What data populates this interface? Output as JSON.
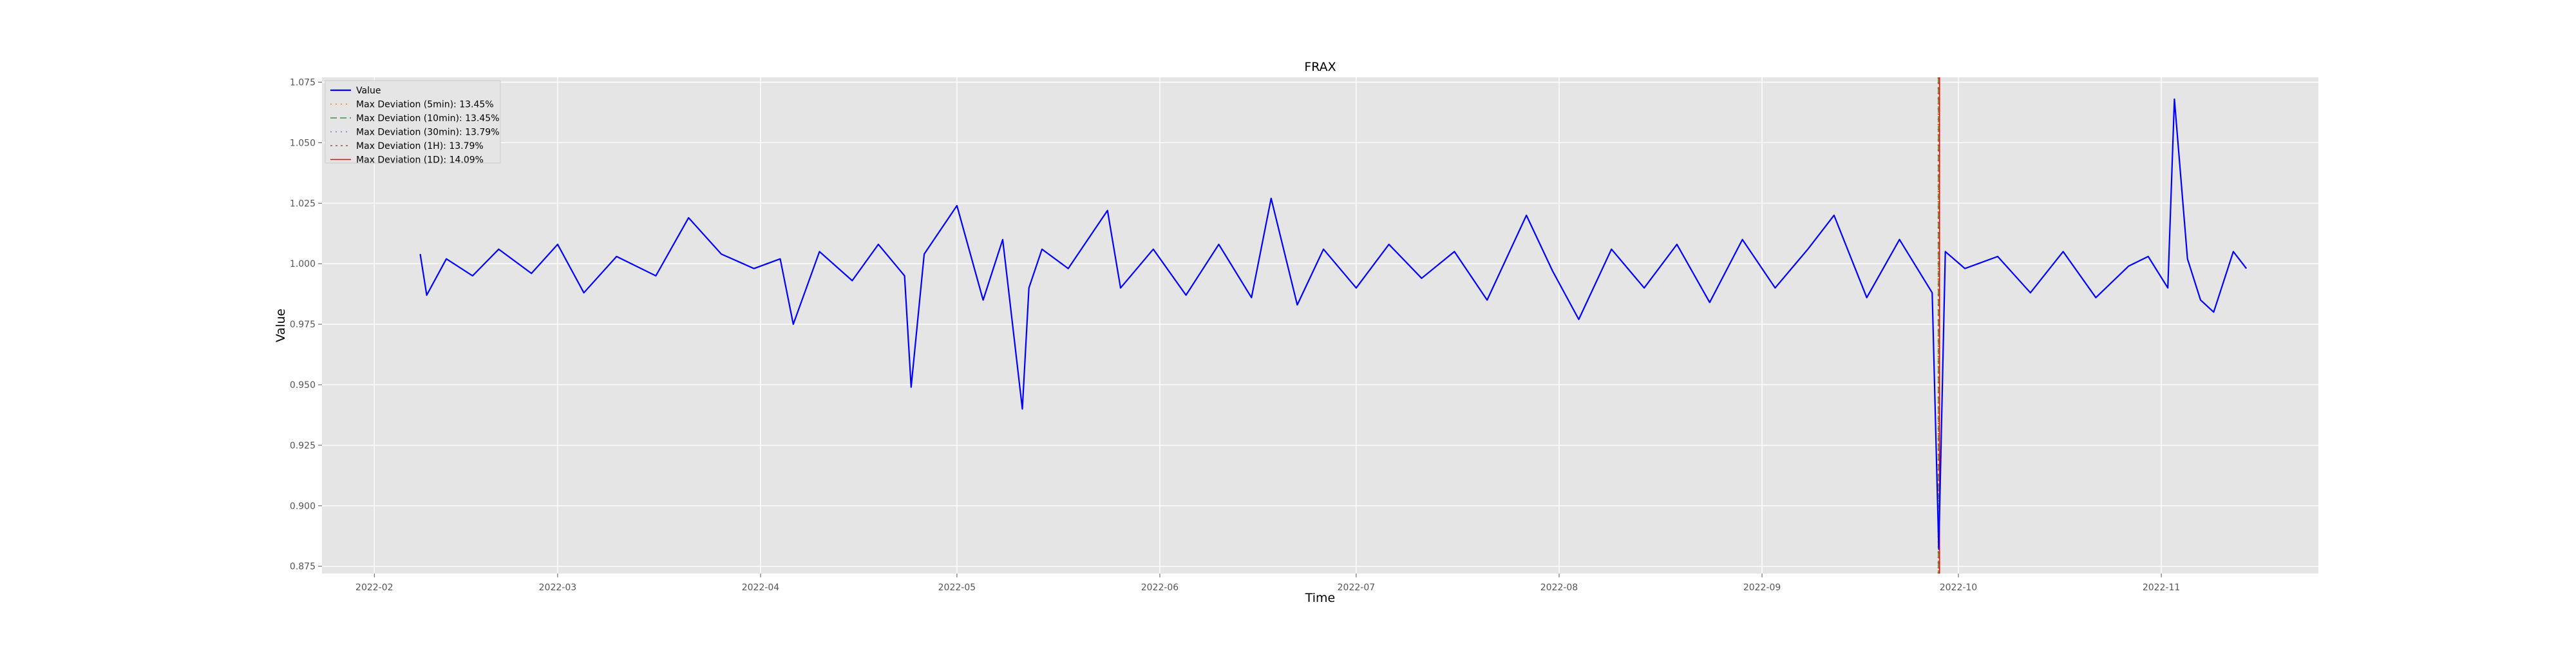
{
  "chart_data": {
    "type": "line",
    "title": "FRAX",
    "xlabel": "Time",
    "ylabel": "Value",
    "ylim": [
      0.872,
      1.077
    ],
    "xlim": [
      "2022-01-24",
      "2022-11-25"
    ],
    "grid": true,
    "legend_placement": "upper-left",
    "x_ticks": [
      "2022-02",
      "2022-03",
      "2022-04",
      "2022-05",
      "2022-06",
      "2022-07",
      "2022-08",
      "2022-09",
      "2022-10",
      "2022-11"
    ],
    "x_tick_dates": [
      "2022-02-01",
      "2022-03-01",
      "2022-04-01",
      "2022-05-01",
      "2022-06-01",
      "2022-07-01",
      "2022-08-01",
      "2022-09-01",
      "2022-10-01",
      "2022-11-01"
    ],
    "y_ticks": [
      "0.875",
      "0.900",
      "0.925",
      "0.950",
      "0.975",
      "1.000",
      "1.025",
      "1.050",
      "1.075"
    ],
    "y_tick_values": [
      0.875,
      0.9,
      0.925,
      0.95,
      0.975,
      1.0,
      1.025,
      1.05,
      1.075
    ],
    "colors": {
      "value": "#0000ff",
      "dev_5min": "#ff7f0e",
      "dev_10min": "#2ca02c",
      "dev_30min": "#9467bd",
      "dev_1h": "#8c564b",
      "dev_1d": "#ff0000",
      "plot_bg": "#e5e5e5",
      "grid": "#ffffff"
    },
    "series": [
      {
        "name": "Value",
        "x": [
          "2022-02-08",
          "2022-02-09",
          "2022-02-12",
          "2022-02-16",
          "2022-02-20",
          "2022-02-25",
          "2022-03-01",
          "2022-03-05",
          "2022-03-10",
          "2022-03-16",
          "2022-03-21",
          "2022-03-26",
          "2022-03-31",
          "2022-04-04",
          "2022-04-06",
          "2022-04-10",
          "2022-04-15",
          "2022-04-19",
          "2022-04-23",
          "2022-04-24",
          "2022-04-26",
          "2022-05-01",
          "2022-05-05",
          "2022-05-08",
          "2022-05-11",
          "2022-05-12",
          "2022-05-14",
          "2022-05-18",
          "2022-05-24",
          "2022-05-26",
          "2022-05-31",
          "2022-06-05",
          "2022-06-10",
          "2022-06-15",
          "2022-06-18",
          "2022-06-22",
          "2022-06-26",
          "2022-07-01",
          "2022-07-06",
          "2022-07-11",
          "2022-07-16",
          "2022-07-21",
          "2022-07-27",
          "2022-07-31",
          "2022-08-04",
          "2022-08-09",
          "2022-08-14",
          "2022-08-19",
          "2022-08-24",
          "2022-08-29",
          "2022-09-03",
          "2022-09-08",
          "2022-09-12",
          "2022-09-17",
          "2022-09-22",
          "2022-09-27",
          "2022-09-28",
          "2022-09-29",
          "2022-10-02",
          "2022-10-07",
          "2022-10-12",
          "2022-10-17",
          "2022-10-22",
          "2022-10-27",
          "2022-10-30",
          "2022-11-02",
          "2022-11-03",
          "2022-11-05",
          "2022-11-07",
          "2022-11-09",
          "2022-11-12",
          "2022-11-14"
        ],
        "y": [
          1.004,
          0.987,
          1.002,
          0.995,
          1.006,
          0.996,
          1.008,
          0.988,
          1.003,
          0.995,
          1.019,
          1.004,
          0.998,
          1.002,
          0.975,
          1.005,
          0.993,
          1.008,
          0.995,
          0.949,
          1.004,
          1.024,
          0.985,
          1.01,
          0.94,
          0.99,
          1.006,
          0.998,
          1.022,
          0.99,
          1.006,
          0.987,
          1.008,
          0.986,
          1.027,
          0.983,
          1.006,
          0.99,
          1.008,
          0.994,
          1.005,
          0.985,
          1.02,
          0.997,
          0.977,
          1.006,
          0.99,
          1.008,
          0.984,
          1.01,
          0.99,
          1.006,
          1.02,
          0.986,
          1.01,
          0.988,
          0.882,
          1.005,
          0.998,
          1.003,
          0.988,
          1.005,
          0.986,
          0.999,
          1.003,
          0.99,
          1.068,
          1.002,
          0.985,
          0.98,
          1.005,
          0.998
        ]
      },
      {
        "name": "Max Deviation (5min): 13.45%",
        "x": "2022-09-28"
      },
      {
        "name": "Max Deviation (10min): 13.45%",
        "x": "2022-09-28"
      },
      {
        "name": "Max Deviation (30min): 13.79%",
        "x": "2022-09-28"
      },
      {
        "name": "Max Deviation (1H): 13.79%",
        "x": "2022-09-28"
      },
      {
        "name": "Max Deviation (1D): 14.09%",
        "x": "2022-09-28"
      }
    ]
  }
}
